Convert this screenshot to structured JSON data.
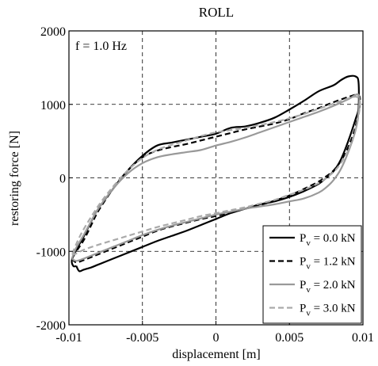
{
  "chart_data": {
    "type": "line",
    "title": "ROLL",
    "annotation": "f = 1.0 Hz",
    "xlabel": "displacement [m]",
    "ylabel": "restoring force [N]",
    "xlim": [
      -0.01,
      0.01
    ],
    "ylim": [
      -2000,
      2000
    ],
    "xticks": [
      -0.01,
      -0.005,
      0,
      0.005,
      0.01
    ],
    "xtick_labels": [
      "-0.01",
      "-0.005",
      "0",
      "0.005",
      "0.01"
    ],
    "yticks": [
      -2000,
      -1000,
      0,
      1000,
      2000
    ],
    "ytick_labels": [
      "-2000",
      "-1000",
      "0",
      "1000",
      "2000"
    ],
    "grid": true,
    "grid_style": "dashed",
    "legend_position": "bottom-right",
    "series": [
      {
        "name": "P_v = 0.0 kN",
        "legend_main": "P",
        "legend_sub": "v",
        "legend_rest": " = 0.0 kN",
        "color": "#000000",
        "dash": "solid",
        "x": [
          -0.0095,
          -0.0093,
          -0.009,
          -0.0085,
          -0.008,
          -0.007,
          -0.006,
          -0.005,
          -0.004,
          -0.003,
          -0.002,
          -0.001,
          0,
          0.001,
          0.002,
          0.003,
          0.004,
          0.005,
          0.006,
          0.007,
          0.0075,
          0.008,
          0.0085,
          0.009,
          0.0095,
          0.0097,
          0.0097,
          0.0095,
          0.009,
          0.0085,
          0.008,
          0.007,
          0.006,
          0.005,
          0.004,
          0.003,
          0.002,
          0.001,
          0,
          -0.001,
          -0.002,
          -0.003,
          -0.004,
          -0.005,
          -0.006,
          -0.007,
          -0.008,
          -0.0085,
          -0.009,
          -0.0095,
          -0.0098,
          -0.0097,
          -0.0095
        ],
        "y": [
          -1200,
          -1270,
          -1250,
          -1220,
          -1180,
          -1100,
          -1020,
          -940,
          -860,
          -790,
          -720,
          -640,
          -560,
          -480,
          -420,
          -360,
          -320,
          -260,
          -180,
          -80,
          0,
          90,
          250,
          500,
          800,
          950,
          1300,
          1380,
          1380,
          1330,
          1260,
          1180,
          1050,
          930,
          820,
          750,
          700,
          680,
          600,
          560,
          520,
          480,
          440,
          300,
          100,
          -150,
          -420,
          -600,
          -800,
          -980,
          -1120,
          -1200,
          -1200
        ]
      },
      {
        "name": "P_v = 1.2 kN",
        "legend_main": "P",
        "legend_sub": "v",
        "legend_rest": " = 1.2 kN",
        "color": "#000000",
        "dash": "dashed",
        "x": [
          -0.0098,
          -0.0095,
          -0.009,
          -0.0085,
          -0.008,
          -0.007,
          -0.006,
          -0.005,
          -0.004,
          -0.003,
          -0.002,
          -0.001,
          0,
          0.001,
          0.002,
          0.003,
          0.004,
          0.005,
          0.006,
          0.007,
          0.0075,
          0.008,
          0.0085,
          0.009,
          0.0095,
          0.0098,
          0.0096,
          0.009,
          0.008,
          0.007,
          0.006,
          0.005,
          0.004,
          0.003,
          0.002,
          0.001,
          0,
          -0.001,
          -0.002,
          -0.003,
          -0.004,
          -0.005,
          -0.006,
          -0.007,
          -0.008,
          -0.0085,
          -0.009,
          -0.0095,
          -0.0098
        ],
        "y": [
          -1100,
          -1150,
          -1120,
          -1080,
          -1040,
          -960,
          -880,
          -800,
          -720,
          -660,
          -610,
          -560,
          -520,
          -470,
          -420,
          -370,
          -310,
          -240,
          -150,
          -50,
          20,
          100,
          230,
          420,
          700,
          1050,
          1130,
          1100,
          1030,
          950,
          880,
          800,
          740,
          700,
          660,
          610,
          560,
          510,
          460,
          420,
          370,
          280,
          100,
          -150,
          -450,
          -650,
          -850,
          -1000,
          -1100
        ]
      },
      {
        "name": "P_v = 2.0 kN",
        "legend_main": "P",
        "legend_sub": "v",
        "legend_rest": " = 2.0 kN",
        "color": "#999999",
        "dash": "solid",
        "x": [
          -0.0098,
          -0.0095,
          -0.009,
          -0.008,
          -0.007,
          -0.006,
          -0.005,
          -0.004,
          -0.003,
          -0.002,
          -0.001,
          0,
          0.001,
          0.002,
          0.003,
          0.004,
          0.005,
          0.006,
          0.007,
          0.0075,
          0.008,
          0.0085,
          0.009,
          0.0095,
          0.0097,
          0.0097,
          0.009,
          0.008,
          0.007,
          0.006,
          0.005,
          0.004,
          0.003,
          0.002,
          0.001,
          0,
          -0.001,
          -0.002,
          -0.003,
          -0.004,
          -0.005,
          -0.006,
          -0.007,
          -0.008,
          -0.009,
          -0.0095,
          -0.0098
        ],
        "y": [
          -1100,
          -1130,
          -1100,
          -1020,
          -940,
          -860,
          -780,
          -710,
          -650,
          -600,
          -550,
          -500,
          -460,
          -420,
          -390,
          -360,
          -320,
          -280,
          -200,
          -130,
          -30,
          120,
          350,
          650,
          900,
          1130,
          1070,
          980,
          900,
          830,
          760,
          690,
          620,
          550,
          490,
          440,
          380,
          350,
          320,
          280,
          200,
          60,
          -150,
          -420,
          -780,
          -950,
          -1100
        ]
      },
      {
        "name": "P_v = 3.0 kN",
        "legend_main": "P",
        "legend_sub": "v",
        "legend_rest": " = 3.0 kN",
        "color": "#aaaaaa",
        "dash": "dashed",
        "x": [
          -0.0098,
          -0.0095,
          -0.009,
          -0.008,
          -0.007,
          -0.006,
          -0.005,
          -0.004,
          -0.003,
          -0.002,
          -0.001,
          0,
          0.001,
          0.002,
          0.003,
          0.004,
          0.005,
          0.006,
          0.007,
          0.0075,
          0.008,
          0.0085,
          0.009,
          0.0095,
          0.0098,
          0.0096,
          0.009,
          0.008,
          0.007,
          0.006,
          0.005,
          0.004,
          0.003,
          0.002,
          0.001,
          0,
          -0.001,
          -0.002,
          -0.003,
          -0.004,
          -0.005,
          -0.006,
          -0.007,
          -0.008,
          -0.009,
          -0.0095,
          -0.0098
        ],
        "y": [
          -1050,
          -1030,
          -980,
          -910,
          -850,
          -790,
          -730,
          -670,
          -620,
          -570,
          -520,
          -480,
          -440,
          -400,
          -350,
          -300,
          -230,
          -160,
          -70,
          0,
          80,
          200,
          380,
          650,
          1000,
          1100,
          1080,
          1010,
          940,
          870,
          810,
          760,
          720,
          680,
          650,
          620,
          570,
          510,
          450,
          380,
          270,
          100,
          -120,
          -380,
          -700,
          -900,
          -1050
        ]
      }
    ]
  }
}
